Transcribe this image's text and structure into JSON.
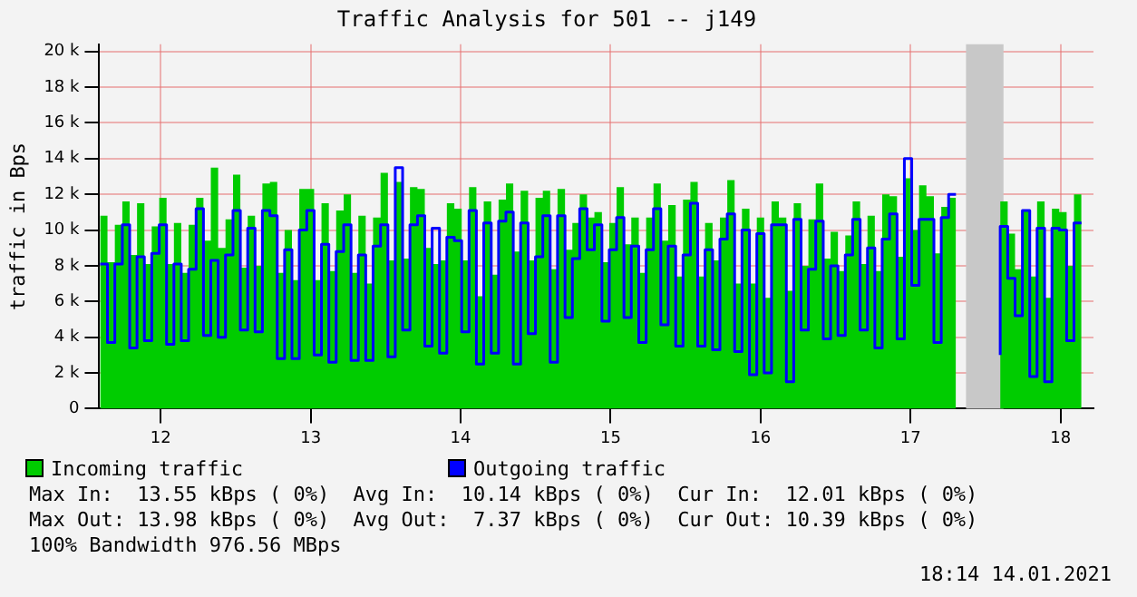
{
  "chart_data": {
    "type": "area",
    "title": "Traffic Analysis for 501 -- j149",
    "ylabel": "traffic in Bps",
    "x": [
      11.596,
      11.645,
      11.694,
      11.744,
      11.793,
      11.842,
      11.891,
      11.94,
      11.99,
      12.039,
      12.088,
      12.137,
      12.186,
      12.236,
      12.285,
      12.334,
      12.383,
      12.432,
      12.482,
      12.531,
      12.58,
      12.629,
      12.678,
      12.728,
      12.777,
      12.826,
      12.875,
      12.924,
      12.974,
      13.023,
      13.072,
      13.121,
      13.17,
      13.22,
      13.269,
      13.318,
      13.367,
      13.416,
      13.466,
      13.515,
      13.564,
      13.613,
      13.662,
      13.712,
      13.761,
      13.81,
      13.859,
      13.908,
      13.958,
      14.007,
      14.056,
      14.105,
      14.154,
      14.204,
      14.253,
      14.302,
      14.351,
      14.4,
      14.45,
      14.499,
      14.548,
      14.597,
      14.646,
      14.696,
      14.745,
      14.794,
      14.843,
      14.892,
      14.942,
      14.991,
      15.04,
      15.089,
      15.138,
      15.188,
      15.237,
      15.286,
      15.335,
      15.384,
      15.434,
      15.483,
      15.532,
      15.581,
      15.63,
      15.68,
      15.729,
      15.778,
      15.827,
      15.876,
      15.926,
      15.975,
      16.024,
      16.073,
      16.122,
      16.172,
      16.221,
      16.27,
      16.319,
      16.368,
      16.418,
      16.467,
      16.516,
      16.565,
      16.614,
      16.664,
      16.713,
      16.762,
      16.811,
      16.86,
      16.91,
      16.959,
      17.008,
      17.057,
      17.106,
      17.156,
      17.205,
      17.254,
      17.303,
      17.352,
      17.402,
      17.451,
      17.5,
      17.549,
      17.598,
      17.648,
      17.697,
      17.746,
      17.795,
      17.844,
      17.894,
      17.943,
      17.992,
      18.041,
      18.09,
      18.14
    ],
    "series": [
      {
        "name": "Incoming traffic",
        "type": "area",
        "color": "#00cc00",
        "values": [
          8700,
          10800,
          8200,
          10300,
          11600,
          8600,
          11500,
          8100,
          10200,
          11800,
          8100,
          10400,
          7600,
          10300,
          11800,
          9400,
          13500,
          9000,
          10600,
          13100,
          7900,
          10800,
          8000,
          12600,
          12700,
          7600,
          10000,
          7200,
          12300,
          12300,
          7200,
          11500,
          7700,
          11100,
          12000,
          7600,
          10800,
          7000,
          10700,
          13200,
          8300,
          12700,
          8400,
          12400,
          12300,
          9000,
          8100,
          8300,
          11500,
          11200,
          8300,
          12400,
          6300,
          11600,
          7500,
          11700,
          12600,
          8800,
          12200,
          8300,
          11800,
          12200,
          7800,
          12300,
          8900,
          10400,
          12000,
          10700,
          11000,
          8200,
          10400,
          12400,
          9200,
          10700,
          7600,
          10700,
          12600,
          9400,
          11400,
          7400,
          11700,
          12700,
          7400,
          10400,
          8300,
          10700,
          12800,
          7000,
          11200,
          7000,
          10700,
          6200,
          11600,
          10700,
          6600,
          11500,
          8000,
          10600,
          12600,
          8400,
          9900,
          7700,
          9700,
          11600,
          8100,
          10800,
          7700,
          12000,
          11900,
          8500,
          12900,
          10000,
          12500,
          11900,
          8700,
          11300,
          11800,
          null,
          null,
          null,
          null,
          null,
          8100,
          11600,
          9800,
          7800,
          11100,
          7400,
          11600,
          6200,
          11200,
          11000,
          8000,
          12000
        ]
      },
      {
        "name": "Outgoing traffic",
        "type": "step",
        "color": "#0000ff",
        "values": [
          8100,
          8100,
          3700,
          8100,
          10300,
          3400,
          8500,
          3800,
          8700,
          10300,
          3600,
          8100,
          3800,
          7800,
          11200,
          4100,
          8300,
          4000,
          8600,
          11100,
          4400,
          10100,
          4300,
          11100,
          10800,
          2800,
          8900,
          2800,
          10000,
          11100,
          3000,
          9200,
          2600,
          8800,
          10300,
          2700,
          8600,
          2700,
          9100,
          10300,
          2900,
          13500,
          4400,
          10300,
          10800,
          3500,
          10100,
          3100,
          9600,
          9400,
          4300,
          11100,
          2500,
          10400,
          3100,
          10500,
          11000,
          2500,
          10400,
          4200,
          8500,
          10800,
          2600,
          10800,
          5100,
          8400,
          11200,
          8900,
          10300,
          4900,
          8900,
          10700,
          5100,
          9100,
          3700,
          8900,
          11200,
          4700,
          9100,
          3500,
          8600,
          11500,
          3500,
          8900,
          3300,
          9500,
          10900,
          3200,
          10000,
          1900,
          9800,
          2000,
          10300,
          10300,
          1500,
          10600,
          4400,
          7800,
          10500,
          3900,
          8000,
          4100,
          8600,
          10600,
          4400,
          9000,
          3400,
          9500,
          10900,
          3900,
          14000,
          6900,
          10600,
          10600,
          3700,
          10700,
          12000,
          null,
          null,
          null,
          null,
          null,
          3000,
          10200,
          7300,
          5200,
          11100,
          1800,
          10100,
          1500,
          10100,
          10000,
          3800,
          10400
        ]
      }
    ],
    "xlim": [
      11.59,
      18.22
    ],
    "xticks": [
      12,
      13,
      14,
      15,
      16,
      17,
      18
    ],
    "ylim": [
      0,
      20400
    ],
    "yticks": [
      {
        "value": 0,
        "label": "0"
      },
      {
        "value": 2000,
        "label": "2 k"
      },
      {
        "value": 4000,
        "label": "4 k"
      },
      {
        "value": 6000,
        "label": "6 k"
      },
      {
        "value": 8000,
        "label": "8 k"
      },
      {
        "value": 10000,
        "label": "10 k"
      },
      {
        "value": 12000,
        "label": "12 k"
      },
      {
        "value": 14000,
        "label": "14 k"
      },
      {
        "value": 16000,
        "label": "16 k"
      },
      {
        "value": 18000,
        "label": "18 k"
      },
      {
        "value": 20000,
        "label": "20 k"
      }
    ],
    "bands": [
      {
        "axis": "x",
        "from": 17.37,
        "to": 17.62,
        "color": "#c8c8c8"
      }
    ],
    "grid": true,
    "legend": "bottom",
    "annotations": [
      "Max In:  13.55 kBps ( 0%)  Avg In:  10.14 kBps ( 0%)  Cur In:  12.01 kBps ( 0%)",
      "Max Out: 13.98 kBps ( 0%)  Avg Out:  7.37 kBps ( 0%)  Cur Out: 10.39 kBps ( 0%)",
      "100% Bandwidth 976.56 MBps",
      "18:14 14.01.2021"
    ]
  }
}
